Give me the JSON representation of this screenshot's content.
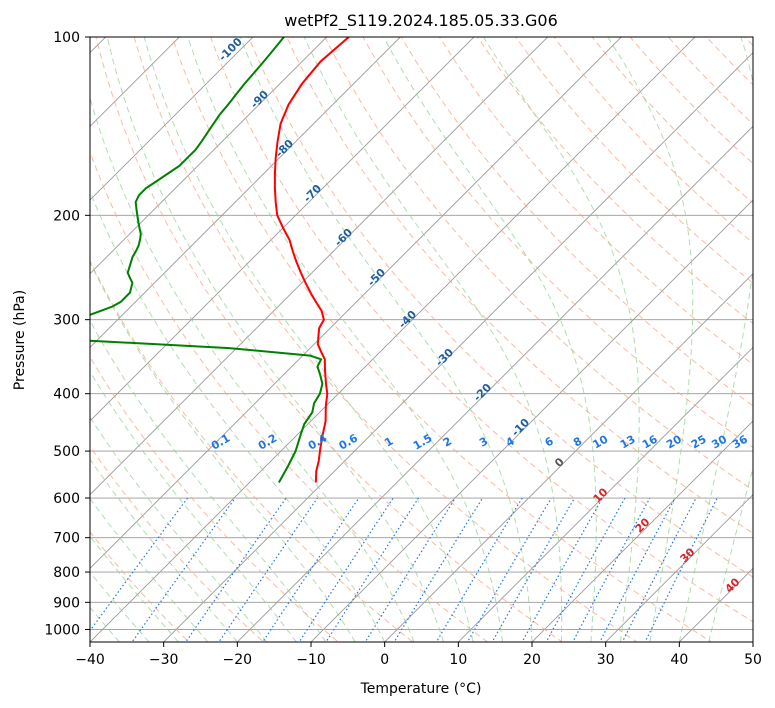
{
  "chart_data": {
    "type": "line",
    "title": "wetPf2_S119.2024.185.05.33.G06",
    "xlabel": "Temperature (°C)",
    "ylabel": "Pressure (hPa)",
    "xlim": [
      -40,
      50
    ],
    "ylim": [
      1050,
      100
    ],
    "y_scale": "log",
    "skew": "45 degrees",
    "grid": true,
    "x_ticks": [
      -40,
      -30,
      -20,
      -10,
      0,
      10,
      20,
      30,
      40,
      50
    ],
    "y_ticks": [
      100,
      200,
      300,
      400,
      500,
      600,
      700,
      800,
      900,
      1000
    ],
    "series": [
      {
        "color": "#ff0000",
        "pressure": [
          565,
          540,
          520,
          495,
          470,
          445,
          420,
          400,
          385,
          375,
          365,
          350,
          340,
          330,
          320,
          310,
          300,
          290,
          280,
          270,
          260,
          250,
          240,
          230,
          220,
          210,
          200,
          190,
          180,
          170,
          160,
          150,
          140,
          130,
          120,
          110,
          100
        ],
        "temperature": [
          -31,
          -32.5,
          -33.5,
          -35,
          -36.5,
          -38,
          -40,
          -41.5,
          -43,
          -44,
          -45,
          -46.5,
          -48,
          -49.5,
          -50.5,
          -51.5,
          -52,
          -53.5,
          -55.5,
          -57.5,
          -59.5,
          -61.5,
          -63.5,
          -65.5,
          -67.5,
          -70,
          -72.5,
          -74.5,
          -76.5,
          -78.5,
          -80.5,
          -82.5,
          -84.5,
          -86,
          -87,
          -87.5,
          -87
        ]
      },
      {
        "color": "#008000",
        "pressure": [
          565,
          530,
          500,
          470,
          450,
          430,
          415,
          400,
          385,
          372,
          360,
          350,
          345,
          335,
          325,
          320,
          315,
          310,
          305,
          300,
          295,
          290,
          285,
          280,
          275,
          270,
          265,
          260,
          255,
          250,
          245,
          240,
          235,
          230,
          225,
          220,
          215,
          210,
          205,
          200,
          195,
          190,
          185,
          180,
          175,
          170,
          165,
          160,
          155,
          150,
          145,
          140,
          135,
          130,
          125,
          120,
          115,
          110,
          105,
          100
        ],
        "temperature": [
          -36,
          -37,
          -38,
          -39.5,
          -40.5,
          -41,
          -42,
          -42.5,
          -43.5,
          -45,
          -46.5,
          -47,
          -49,
          -61,
          -82,
          -87,
          -88,
          -88,
          -87.5,
          -86,
          -84.5,
          -83.5,
          -82.5,
          -82,
          -82,
          -82,
          -82.5,
          -83,
          -84,
          -85,
          -85.5,
          -86,
          -86.5,
          -86.8,
          -87.2,
          -87.8,
          -88.5,
          -89.5,
          -90.5,
          -91.5,
          -92.5,
          -93.5,
          -94,
          -94,
          -93.5,
          -93,
          -92.5,
          -92.5,
          -92.5,
          -92.8,
          -93.2,
          -93.6,
          -94,
          -94.2,
          -94.5,
          -94.8,
          -95,
          -95.2,
          -95.5,
          -95.8
        ]
      }
    ],
    "dry_adiabat_labels": [
      "-100",
      "-90",
      "-80",
      "-70",
      "-60",
      "-50",
      "-40",
      "-30",
      "-20",
      "-10",
      "0",
      "10",
      "20",
      "30",
      "40"
    ],
    "mixing_ratio_labels": [
      "0.1",
      "0.2",
      "0.4",
      "0.6",
      "1",
      "1.5",
      "2",
      "3",
      "4",
      "6",
      "8",
      "10",
      "13",
      "16",
      "20",
      "25",
      "30",
      "36"
    ],
    "mixing_ratio_values": [
      0.1,
      0.2,
      0.4,
      0.6,
      1,
      1.5,
      2,
      3,
      4,
      6,
      8,
      10,
      13,
      16,
      20,
      25,
      30,
      36
    ],
    "colors": {
      "dry_adiabat_line": "#f4a582",
      "moist_adiabat_line": "#8fce8f",
      "mixing_ratio_line": "#1f77e4",
      "isotherm_line": "#999999",
      "dry_label_cold": "#1f5f9e",
      "dry_label_zero": "#555555",
      "dry_label_warm": "#d62728"
    }
  }
}
